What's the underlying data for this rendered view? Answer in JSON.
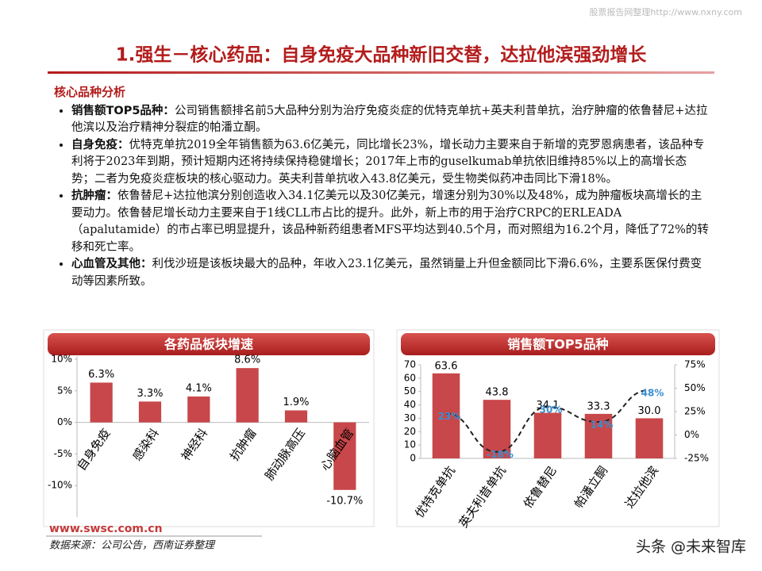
{
  "watermark": "股票报告网整理http://www.nxny.com",
  "title": "1.强生－核心药品：自身免疫大品种新旧交替，达拉他滨强劲增长",
  "section": "核心品种分析",
  "bullets": [
    {
      "lead": "销售额TOP5品种：",
      "text": "公司销售额排名前5大品种分别为治疗免疫炎症的优特克单抗+英夫利昔单抗，治疗肿瘤的依鲁替尼+达拉他滨以及治疗精神分裂症的帕潘立酮。"
    },
    {
      "lead": "自身免疫：",
      "text": "优特克单抗2019全年销售额为63.6亿美元，同比增长23%，增长动力主要来自于新增的克罗恩病患者，该品种专利将于2023年到期，预计短期内还将持续保持稳健增长；2017年上市的guselkumab单抗依旧维持85%以上的高增长态势；二者为免疫炎症板块的核心驱动力。英夫利昔单抗收入43.8亿美元，受生物类似药冲击同比下滑18%。"
    },
    {
      "lead": "抗肿瘤：",
      "text": "依鲁替尼+达拉他滨分别创造收入34.1亿美元以及30亿美元，增速分别为30%以及48%，成为肿瘤板块高增长的主要动力。依鲁替尼增长动力主要来自于1线CLL市占比的提升。此外，新上市的用于治疗CRPC的ERLEADA（apalutamide）的市占率已明显提升，该品种新药组患者MFS平均达到40.5个月，而对照组为16.2个月，降低了72%的转移和死亡率。"
    },
    {
      "lead": "心血管及其他：",
      "text": "利伐沙班是该板块最大的品种，年收入23.1亿美元，虽然销量上升但金额同比下滑6.6%，主要系医保付费变动等因素所致。"
    }
  ],
  "chart_data": [
    {
      "type": "bar",
      "title": "各药品板块增速",
      "categories": [
        "自身免疫",
        "感染科",
        "神经科",
        "抗肿瘤",
        "肺动脉高压",
        "心脑血管"
      ],
      "values": [
        6.3,
        3.3,
        4.1,
        8.6,
        1.9,
        -10.7
      ],
      "value_labels": [
        "6.3%",
        "3.3%",
        "4.1%",
        "8.6%",
        "1.9%",
        "-10.7%"
      ],
      "color": "#c8474a",
      "ylim": [
        -15,
        10
      ],
      "yticks": [
        {
          "value": 10,
          "label": "10%"
        },
        {
          "value": 5,
          "label": "5%"
        },
        {
          "value": 0,
          "label": "0%"
        },
        {
          "value": -5,
          "label": "-5%"
        },
        {
          "value": -10,
          "label": "-10%"
        }
      ]
    },
    {
      "type": "combo",
      "title": "销售额TOP5品种",
      "categories": [
        "优特克单抗",
        "英夫利昔单抗",
        "依鲁替尼",
        "帕潘立酮",
        "达拉他滨"
      ],
      "series": [
        {
          "type": "bar",
          "color": "#c8474a",
          "values": [
            63.6,
            43.8,
            34.1,
            33.3,
            30.0
          ],
          "value_labels": [
            "63.6",
            "43.8",
            "34.1",
            "33.3",
            "30.0"
          ]
        },
        {
          "type": "line",
          "color": "#222222",
          "axis": "y2",
          "values": [
            23,
            -18,
            30,
            14,
            48
          ],
          "value_labels": [
            "23%",
            "-18%",
            "30%",
            "14%",
            "48%"
          ],
          "label_color": "#3a8fd0"
        }
      ],
      "ylim": [
        0,
        70
      ],
      "yticks": [
        0,
        10,
        20,
        30,
        40,
        50,
        60,
        70
      ],
      "y2lim": [
        -25,
        75
      ],
      "y2ticks": [
        {
          "value": -25,
          "label": "-25%"
        },
        {
          "value": 0,
          "label": "0%"
        },
        {
          "value": 25,
          "label": "25%"
        },
        {
          "value": 50,
          "label": "50%"
        },
        {
          "value": 75,
          "label": "75%"
        }
      ]
    }
  ],
  "footer": {
    "site": "www.swsc.com.cn",
    "source": "数据来源：公司公告，西南证券整理",
    "brand": "头条 @未来智库"
  }
}
